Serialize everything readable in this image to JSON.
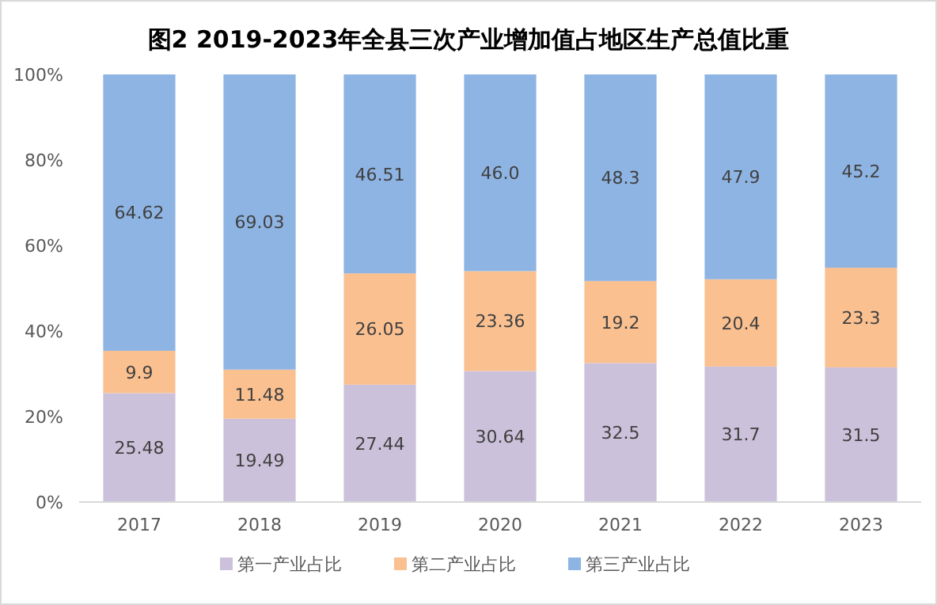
{
  "chart_data": {
    "type": "bar",
    "stacked": true,
    "title": "图2 2019-2023年全县三次产业增加值占地区生产总值比重",
    "categories": [
      "2017",
      "2018",
      "2019",
      "2020",
      "2021",
      "2022",
      "2023"
    ],
    "series": [
      {
        "name": "第一产业占比",
        "color": "#ccc1da",
        "values": [
          25.48,
          19.49,
          27.44,
          30.64,
          32.5,
          31.7,
          31.5
        ],
        "value_labels": [
          "25.48",
          "19.49",
          "27.44",
          "30.64",
          "32.5",
          "31.7",
          "31.5"
        ]
      },
      {
        "name": "第二产业占比",
        "color": "#fac090",
        "values": [
          9.9,
          11.48,
          26.05,
          23.36,
          19.2,
          20.4,
          23.3
        ],
        "value_labels": [
          "9.9",
          "11.48",
          "26.05",
          "23.36",
          "19.2",
          "20.4",
          "23.3"
        ]
      },
      {
        "name": "第三产业占比",
        "color": "#8eb4e3",
        "values": [
          64.62,
          69.03,
          46.51,
          46.0,
          48.3,
          47.9,
          45.2
        ],
        "value_labels": [
          "64.62",
          "69.03",
          "46.51",
          "46.0",
          "48.3",
          "47.9",
          "45.2"
        ]
      }
    ],
    "ylim": [
      0,
      100
    ],
    "yticks": [
      {
        "value": 0,
        "label": "0%"
      },
      {
        "value": 20,
        "label": "20%"
      },
      {
        "value": 40,
        "label": "40%"
      },
      {
        "value": 60,
        "label": "60%"
      },
      {
        "value": 80,
        "label": "80%"
      },
      {
        "value": 100,
        "label": "100%"
      }
    ],
    "legend": "bottom"
  }
}
